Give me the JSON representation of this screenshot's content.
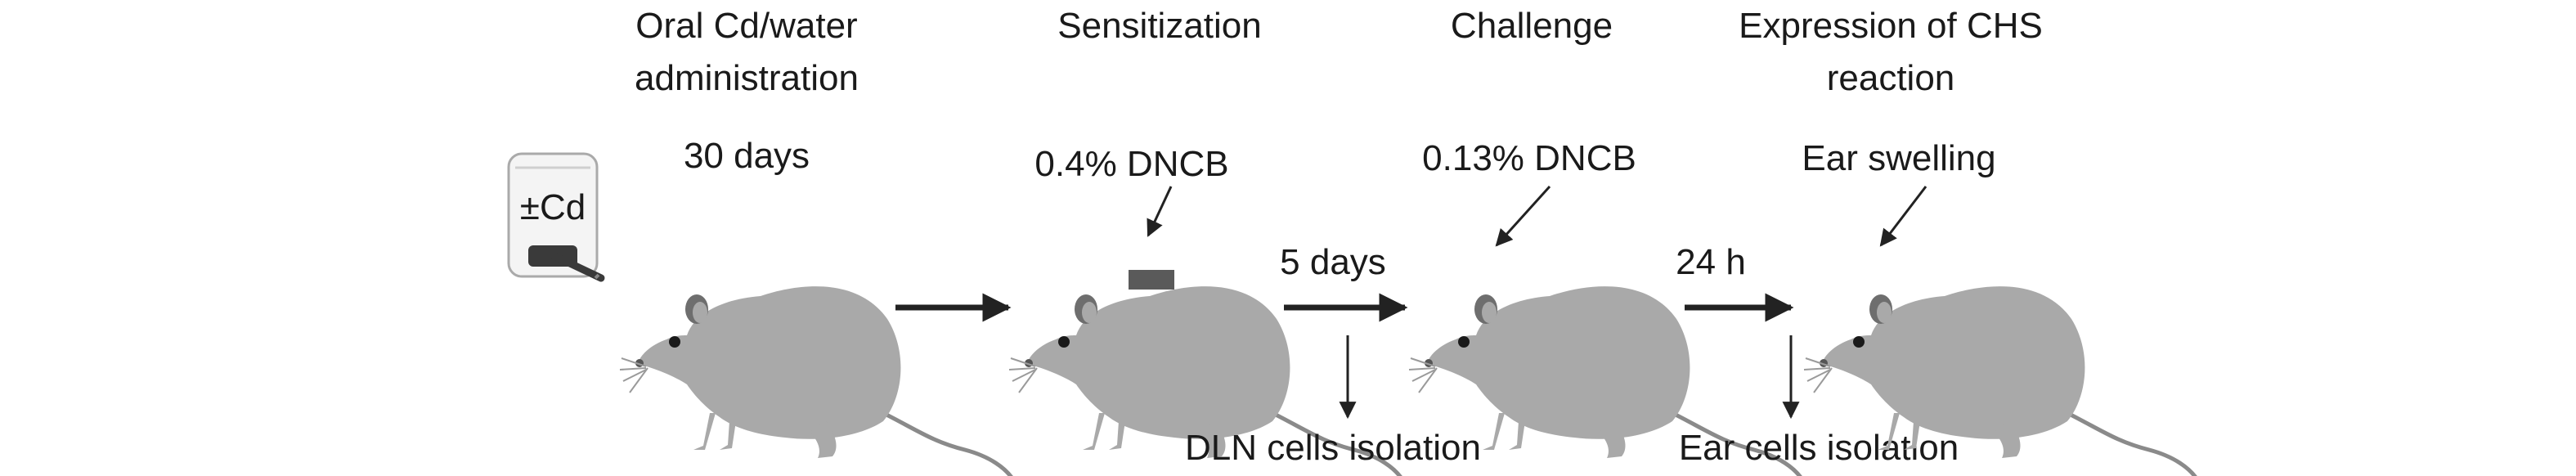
{
  "stages": [
    {
      "title_line1": "Oral Cd/water",
      "title_line2": "administration",
      "detail": "30 days"
    },
    {
      "title_line1": "Sensitization",
      "title_line2": "",
      "detail": "0.4% DNCB"
    },
    {
      "title_line1": "Challenge",
      "title_line2": "",
      "detail": "0.13% DNCB"
    },
    {
      "title_line1": "Expression of CHS",
      "title_line2": "reaction",
      "detail": "Ear swelling"
    }
  ],
  "bottle_label": "±Cd",
  "intervals": [
    "5 days",
    "24 h"
  ],
  "isolations": [
    "DLN cells isolation",
    "Ear cells isolation"
  ],
  "colors": {
    "rat": "#a9a9a9",
    "rat_dark": "#6e6e6e",
    "patch": "#5a5a5a",
    "arrow": "#222222",
    "text": "#1a1a1a"
  }
}
